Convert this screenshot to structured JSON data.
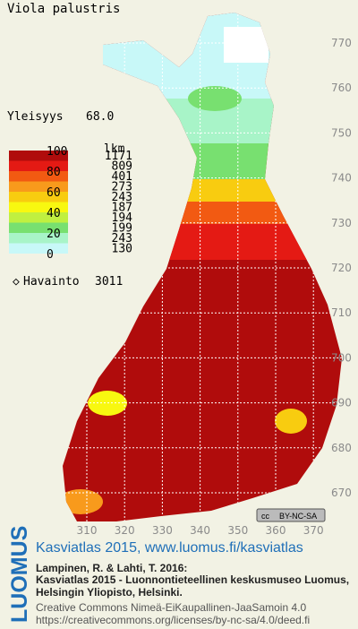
{
  "title": "Viola palustris",
  "frequency_label": "Yleisyys",
  "frequency_value": "68.0",
  "legend": {
    "scale_labels": [
      100,
      80,
      60,
      40,
      20,
      0
    ],
    "count_header": "lkm",
    "counts": [
      1171,
      809,
      401,
      273,
      243,
      187,
      194,
      199,
      243,
      130
    ],
    "colors": [
      "#b00c0c",
      "#e41a14",
      "#f25a12",
      "#f89a1c",
      "#f8cc10",
      "#f8f810",
      "#c0f040",
      "#78e070",
      "#a8f4c8",
      "#c8f8f8"
    ]
  },
  "observation_label": "Havainto",
  "observation_count": 3011,
  "y_grid_labels": [
    770,
    760,
    750,
    740,
    730,
    720,
    710,
    700,
    690,
    680,
    670
  ],
  "x_grid_labels": [
    310,
    320,
    330,
    340,
    350,
    360,
    370
  ],
  "license_badge": {
    "cc": "cc",
    "terms": "BY-NC-SA"
  },
  "footer": {
    "brand": "LUOMUS",
    "link": "Kasviatlas 2015, www.luomus.fi/kasviatlas",
    "citation": [
      "Lampinen, R. & Lahti, T. 2016:",
      "Kasviatlas 2015 - Luonnontieteellinen keskusmuseo Luomus,",
      "Helsingin Yliopisto, Helsinki."
    ],
    "license": [
      "Creative Commons Nimeä-EiKaupallinen-JaaSamoin 4.0",
      "https://creativecommons.org/licenses/by-nc-sa/4.0/deed.fi"
    ]
  }
}
